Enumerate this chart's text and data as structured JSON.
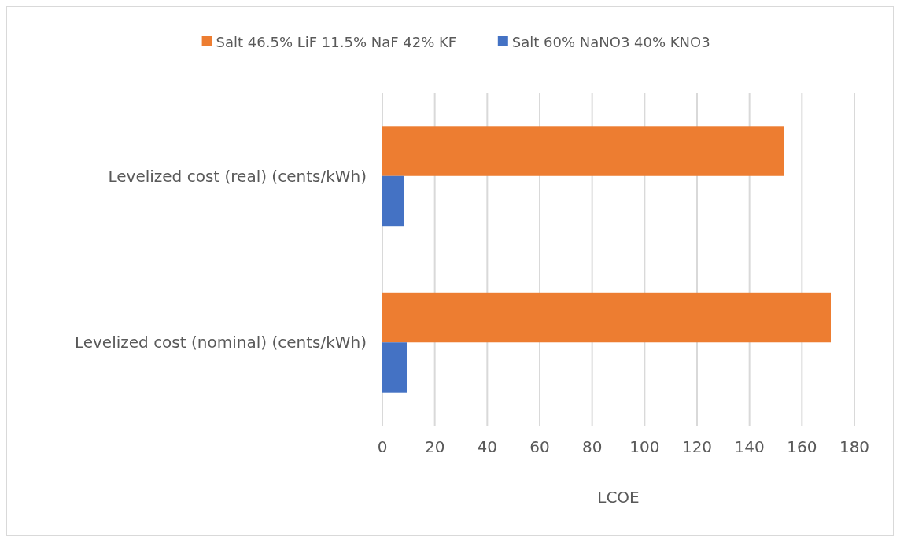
{
  "chart_data": {
    "type": "bar",
    "orientation": "horizontal",
    "xlabel": "LCOE",
    "categories": [
      "Levelized cost (real) (cents/kWh)",
      "Levelized cost (nominal) (cents/kWh)"
    ],
    "series": [
      {
        "name": "Salt 46.5% LiF 11.5% NaF 42% KF",
        "color": "#ed7d31",
        "values": [
          153,
          171
        ]
      },
      {
        "name": "Salt 60% NaNO3 40% KNO3",
        "color": "#4472c4",
        "values": [
          8.3,
          9.3
        ]
      }
    ],
    "xlim": [
      0,
      180
    ],
    "xticks": [
      0,
      20,
      40,
      60,
      80,
      100,
      120,
      140,
      160,
      180
    ],
    "grid": "x",
    "legend": "top"
  }
}
